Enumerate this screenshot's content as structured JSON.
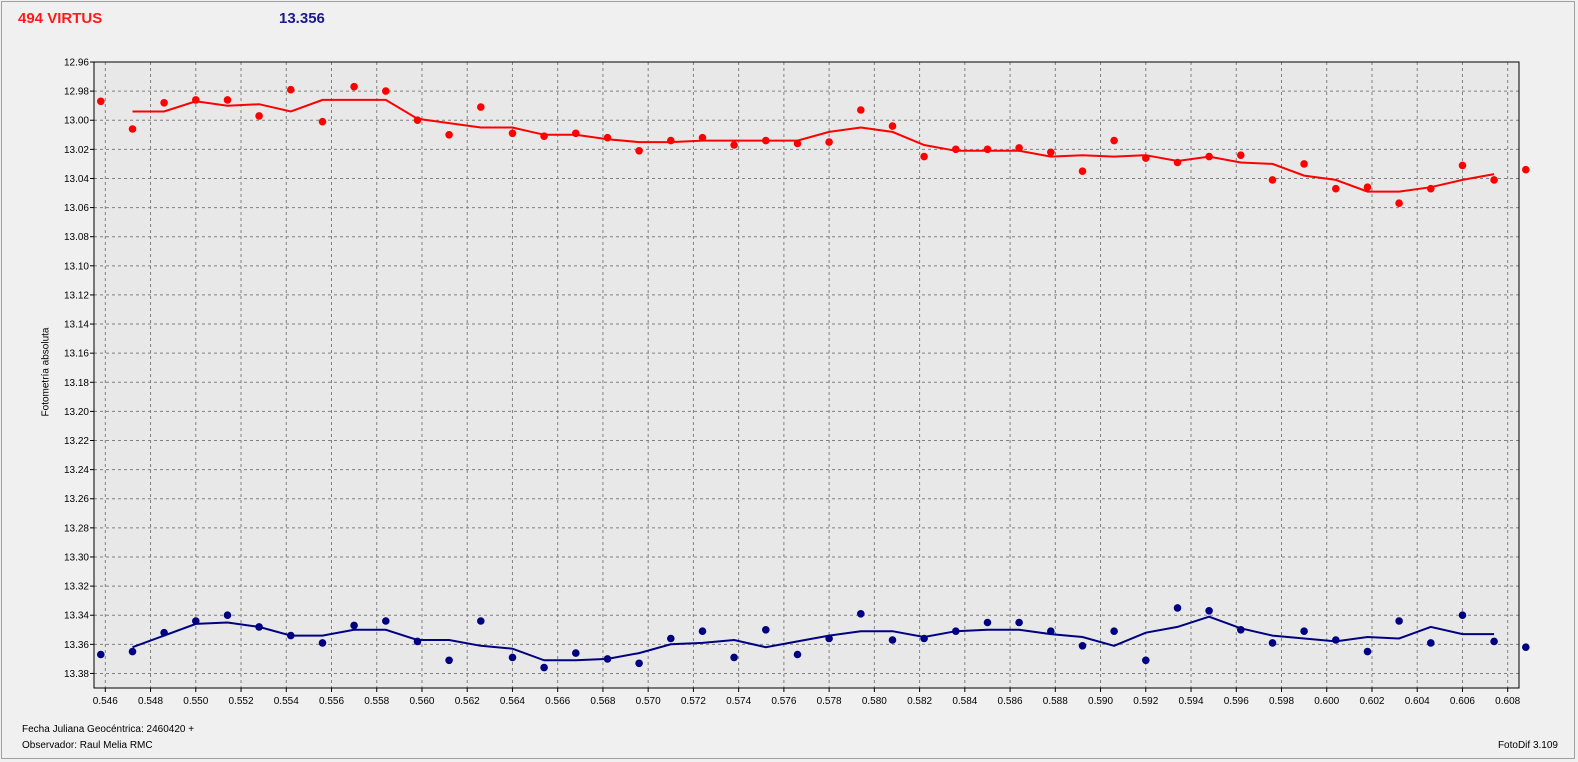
{
  "header": {
    "object_name": "494 VIRTUS",
    "mean_magnitude": "13.356"
  },
  "footer": {
    "date_label": "Fecha Juliana Geocéntrica: 2460420 +",
    "observer": "Observador: Raul Melia RMC",
    "software": "FotoDif 3.109"
  },
  "colors": {
    "target": "#ff0000",
    "comparison": "#000080",
    "plot_bg": "#e8e8e8",
    "grid": "#808080"
  },
  "chart_data": {
    "type": "scatter",
    "ylabel": "Fotometría absoluta",
    "xlim": [
      0.5455,
      0.6085
    ],
    "ylim": [
      12.96,
      13.39
    ],
    "y_inverted": true,
    "grid": true,
    "x_ticks": [
      "0.546",
      "0.548",
      "0.550",
      "0.552",
      "0.554",
      "0.556",
      "0.558",
      "0.560",
      "0.562",
      "0.564",
      "0.566",
      "0.568",
      "0.570",
      "0.572",
      "0.574",
      "0.576",
      "0.578",
      "0.580",
      "0.582",
      "0.584",
      "0.586",
      "0.588",
      "0.590",
      "0.592",
      "0.594",
      "0.596",
      "0.598",
      "0.600",
      "0.602",
      "0.604",
      "0.606",
      "0.608"
    ],
    "y_ticks": [
      "12.96",
      "12.98",
      "13.00",
      "13.02",
      "13.04",
      "13.06",
      "13.08",
      "13.10",
      "13.12",
      "13.14",
      "13.16",
      "13.18",
      "13.20",
      "13.22",
      "13.24",
      "13.26",
      "13.28",
      "13.30",
      "13.32",
      "13.34",
      "13.36",
      "13.38"
    ],
    "x": [
      0.5458,
      0.5472,
      0.5486,
      0.55,
      0.5514,
      0.5528,
      0.5542,
      0.5556,
      0.557,
      0.5584,
      0.5598,
      0.5612,
      0.5626,
      0.564,
      0.5654,
      0.5668,
      0.5682,
      0.5696,
      0.571,
      0.5724,
      0.5738,
      0.5752,
      0.5766,
      0.578,
      0.5794,
      0.5808,
      0.5822,
      0.5836,
      0.585,
      0.5864,
      0.5878,
      0.5892,
      0.5906,
      0.592,
      0.5934,
      0.5948,
      0.5962,
      0.5976,
      0.599,
      0.6004,
      0.6018,
      0.6032,
      0.6046,
      0.606,
      0.6074,
      0.6088
    ],
    "series": [
      {
        "role": "target",
        "color": "#ff0000",
        "points": [
          12.987,
          13.006,
          12.988,
          12.986,
          12.986,
          12.997,
          12.979,
          13.001,
          12.977,
          12.98,
          13.0,
          13.01,
          12.991,
          13.009,
          13.011,
          13.009,
          13.012,
          13.021,
          13.014,
          13.012,
          13.017,
          13.014,
          13.016,
          13.015,
          12.993,
          13.004,
          13.025,
          13.02,
          13.02,
          13.019,
          13.022,
          13.035,
          13.014,
          13.026,
          13.029,
          13.025,
          13.024,
          13.041,
          13.03,
          13.047,
          13.046,
          13.057,
          13.047,
          13.031,
          13.041,
          13.034
        ],
        "trend": [
          null,
          12.994,
          12.994,
          12.987,
          12.99,
          12.989,
          12.994,
          12.986,
          12.986,
          12.986,
          12.999,
          13.002,
          13.005,
          13.005,
          13.01,
          13.01,
          13.013,
          13.015,
          13.015,
          13.014,
          13.014,
          13.014,
          13.014,
          13.008,
          13.005,
          13.008,
          13.017,
          13.021,
          13.021,
          13.021,
          13.025,
          13.024,
          13.025,
          13.024,
          13.028,
          13.025,
          13.029,
          13.03,
          13.038,
          13.041,
          13.049,
          13.049,
          13.046,
          13.041,
          13.037,
          null
        ]
      },
      {
        "role": "comparison",
        "color": "#000080",
        "points": [
          13.367,
          13.365,
          13.352,
          13.344,
          13.34,
          13.348,
          13.354,
          13.359,
          13.347,
          13.344,
          13.358,
          13.371,
          13.344,
          13.369,
          13.376,
          13.366,
          13.37,
          13.373,
          13.356,
          13.351,
          13.369,
          13.35,
          13.367,
          13.356,
          13.339,
          13.357,
          13.356,
          13.351,
          13.345,
          13.345,
          13.351,
          13.361,
          13.351,
          13.371,
          13.335,
          13.337,
          13.35,
          13.359,
          13.351,
          13.357,
          13.365,
          13.344,
          13.359,
          13.34,
          13.358,
          13.362
        ],
        "trend": [
          null,
          13.362,
          13.354,
          13.346,
          13.345,
          13.348,
          13.354,
          13.354,
          13.35,
          13.35,
          13.357,
          13.357,
          13.361,
          13.363,
          13.371,
          13.371,
          13.37,
          13.366,
          13.36,
          13.359,
          13.357,
          13.362,
          13.358,
          13.354,
          13.351,
          13.351,
          13.355,
          13.351,
          13.35,
          13.35,
          13.353,
          13.355,
          13.361,
          13.352,
          13.348,
          13.341,
          13.349,
          13.354,
          13.356,
          13.358,
          13.355,
          13.356,
          13.348,
          13.353,
          13.353,
          null
        ]
      }
    ]
  }
}
